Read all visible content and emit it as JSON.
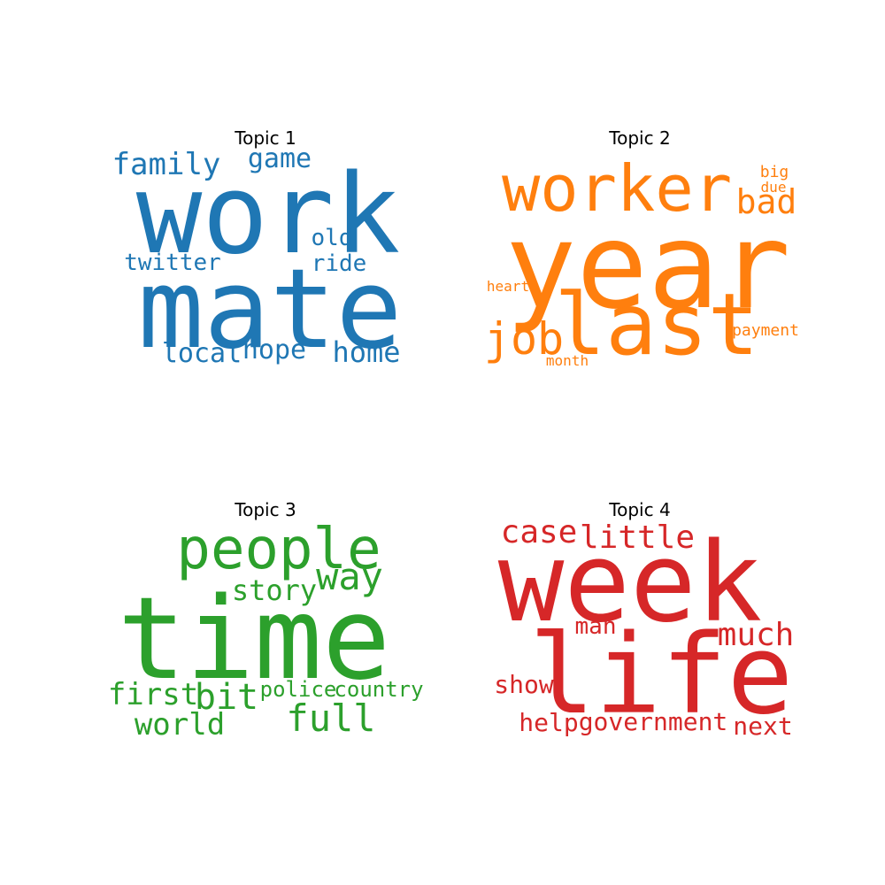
{
  "chart_data": [
    {
      "type": "wordcloud",
      "title": "Topic 1",
      "color": "#1f77b4",
      "words": [
        "work",
        "mate",
        "family",
        "game",
        "twitter",
        "old",
        "ride",
        "local",
        "hope",
        "home"
      ]
    },
    {
      "type": "wordcloud",
      "title": "Topic 2",
      "color": "#ff7f0e",
      "words": [
        "worker",
        "year",
        "last",
        "job",
        "bad",
        "big",
        "due",
        "heart",
        "payment",
        "month"
      ]
    },
    {
      "type": "wordcloud",
      "title": "Topic 3",
      "color": "#2ca02c",
      "words": [
        "time",
        "people",
        "way",
        "story",
        "bit",
        "first",
        "police",
        "country",
        "full",
        "world"
      ]
    },
    {
      "type": "wordcloud",
      "title": "Topic 4",
      "color": "#d62728",
      "words": [
        "week",
        "life",
        "case",
        "little",
        "much",
        "man",
        "show",
        "help",
        "government",
        "next"
      ]
    }
  ]
}
